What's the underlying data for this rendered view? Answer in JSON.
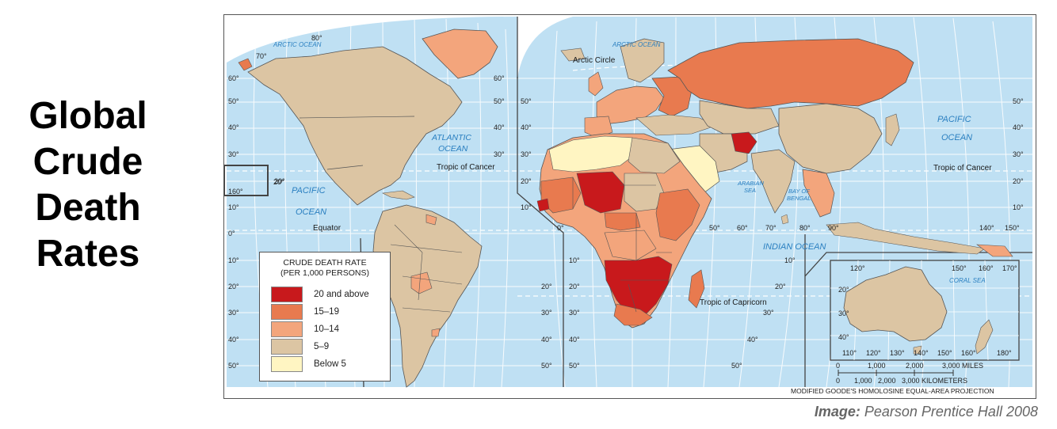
{
  "title_lines": [
    "Global",
    "Crude",
    "Death",
    "Rates"
  ],
  "credit": {
    "label": "Image:",
    "text": "Pearson Prentice Hall 2008"
  },
  "colors": {
    "ocean": "#bfe0f3",
    "grid": "#ffffff",
    "border": "#555555",
    "c20": "#c8191c",
    "c15": "#e87a4f",
    "c10": "#f3a57c",
    "c5": "#dcc5a3",
    "c0": "#fff5c2"
  },
  "legend": {
    "title_line1": "CRUDE DEATH RATE",
    "title_line2": "(PER 1,000 PERSONS)",
    "items": [
      {
        "label": "20 and above",
        "color": "#c8191c"
      },
      {
        "label": "15–19",
        "color": "#e87a4f"
      },
      {
        "label": "10–14",
        "color": "#f3a57c"
      },
      {
        "label": "5–9",
        "color": "#dcc5a3"
      },
      {
        "label": "Below 5",
        "color": "#fff5c2"
      }
    ]
  },
  "labels": {
    "arctic_ocean_1": "ARCTIC OCEAN",
    "arctic_ocean_2": "ARCTIC OCEAN",
    "arctic_circle": "Arctic Circle",
    "atlantic_1": "ATLANTIC",
    "atlantic_2": "OCEAN",
    "pacific_w_1": "PACIFIC",
    "pacific_w_2": "OCEAN",
    "pacific_e_1": "PACIFIC",
    "pacific_e_2": "OCEAN",
    "tropic_cancer_w": "Tropic of Cancer",
    "tropic_cancer_e": "Tropic of Cancer",
    "equator": "Equator",
    "arabian_1": "ARABIAN",
    "arabian_2": "SEA",
    "bengal_1": "BAY OF",
    "bengal_2": "BENGAL",
    "indian_ocean": "INDIAN OCEAN",
    "tropic_capricorn": "Tropic of Capricorn",
    "coral_sea": "CORAL SEA",
    "scale_miles": "3,000 MILES",
    "scale_km": "3,000 KILOMETERS",
    "projection": "MODIFIED GOODE'S HOMOLOSINE EQUAL-AREA PROJECTION"
  },
  "scale": {
    "miles_ticks": [
      "0",
      "1,000",
      "2,000"
    ],
    "km_ticks": [
      "0",
      "1,000",
      "2,000"
    ]
  },
  "degree_labels": {
    "left_lat": [
      "60°",
      "50°",
      "40°",
      "30°",
      "20°",
      "10°",
      "0°",
      "10°",
      "20°",
      "30°",
      "40°",
      "50°"
    ],
    "lobe1_right_lat": [
      "60°",
      "50°",
      "40°",
      "30°"
    ],
    "lobe2_left_lat": [
      "50°",
      "40°",
      "30°",
      "20°",
      "10°"
    ],
    "right_lat": [
      "50°",
      "40°",
      "30°",
      "20°",
      "10°"
    ],
    "south_america_lat": [
      "20°",
      "30°",
      "40°",
      "50°"
    ],
    "africa_west_lat": [
      "10°",
      "20°",
      "30°",
      "40°",
      "50°"
    ],
    "africa_east_lat": [
      "10°",
      "20°",
      "30°",
      "40°",
      "50°"
    ],
    "inset_lat": [
      "20°",
      "30°",
      "40°"
    ],
    "top_lon": [
      "70°",
      "80°"
    ],
    "lon_pacific_w": [
      "20°",
      "160°"
    ],
    "lon_equator_row": [
      "0°",
      "50°",
      "60°",
      "70°",
      "80°",
      "90°",
      "140°",
      "150°"
    ],
    "inset_top_lon": [
      "120°",
      "150°",
      "160°",
      "170°"
    ],
    "inset_bottom_lon": [
      "110°",
      "120°",
      "130°",
      "140°",
      "150°",
      "160°",
      "180°"
    ]
  }
}
